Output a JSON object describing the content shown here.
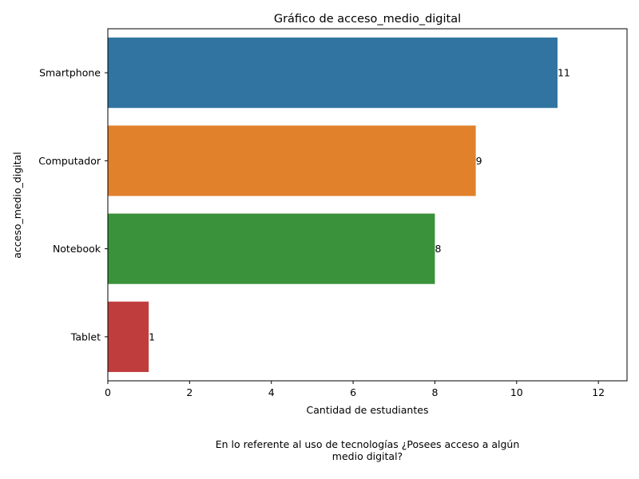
{
  "chart_data": {
    "type": "bar",
    "orientation": "horizontal",
    "title": "Gráfico de acceso_medio_digital",
    "xlabel": "Cantidad de estudiantes",
    "ylabel": "acceso_medio_digital",
    "categories": [
      "Smartphone",
      "Computador",
      "Notebook",
      "Tablet"
    ],
    "values": [
      11,
      9,
      8,
      1
    ],
    "data_labels": [
      "11",
      "9",
      "8",
      "1"
    ],
    "colors": [
      "#3274a1",
      "#e1812c",
      "#3a923a",
      "#c03d3e"
    ],
    "xlim": [
      0,
      12.7
    ],
    "xticks": [
      0,
      2,
      4,
      6,
      8,
      10,
      12
    ],
    "xtick_labels": [
      "0",
      "2",
      "4",
      "6",
      "8",
      "10",
      "12"
    ],
    "grid": false,
    "legend": "none"
  },
  "caption_line1": "En lo referente al uso de tecnologías ¿Posees acceso a algún",
  "caption_line2": "medio digital?"
}
